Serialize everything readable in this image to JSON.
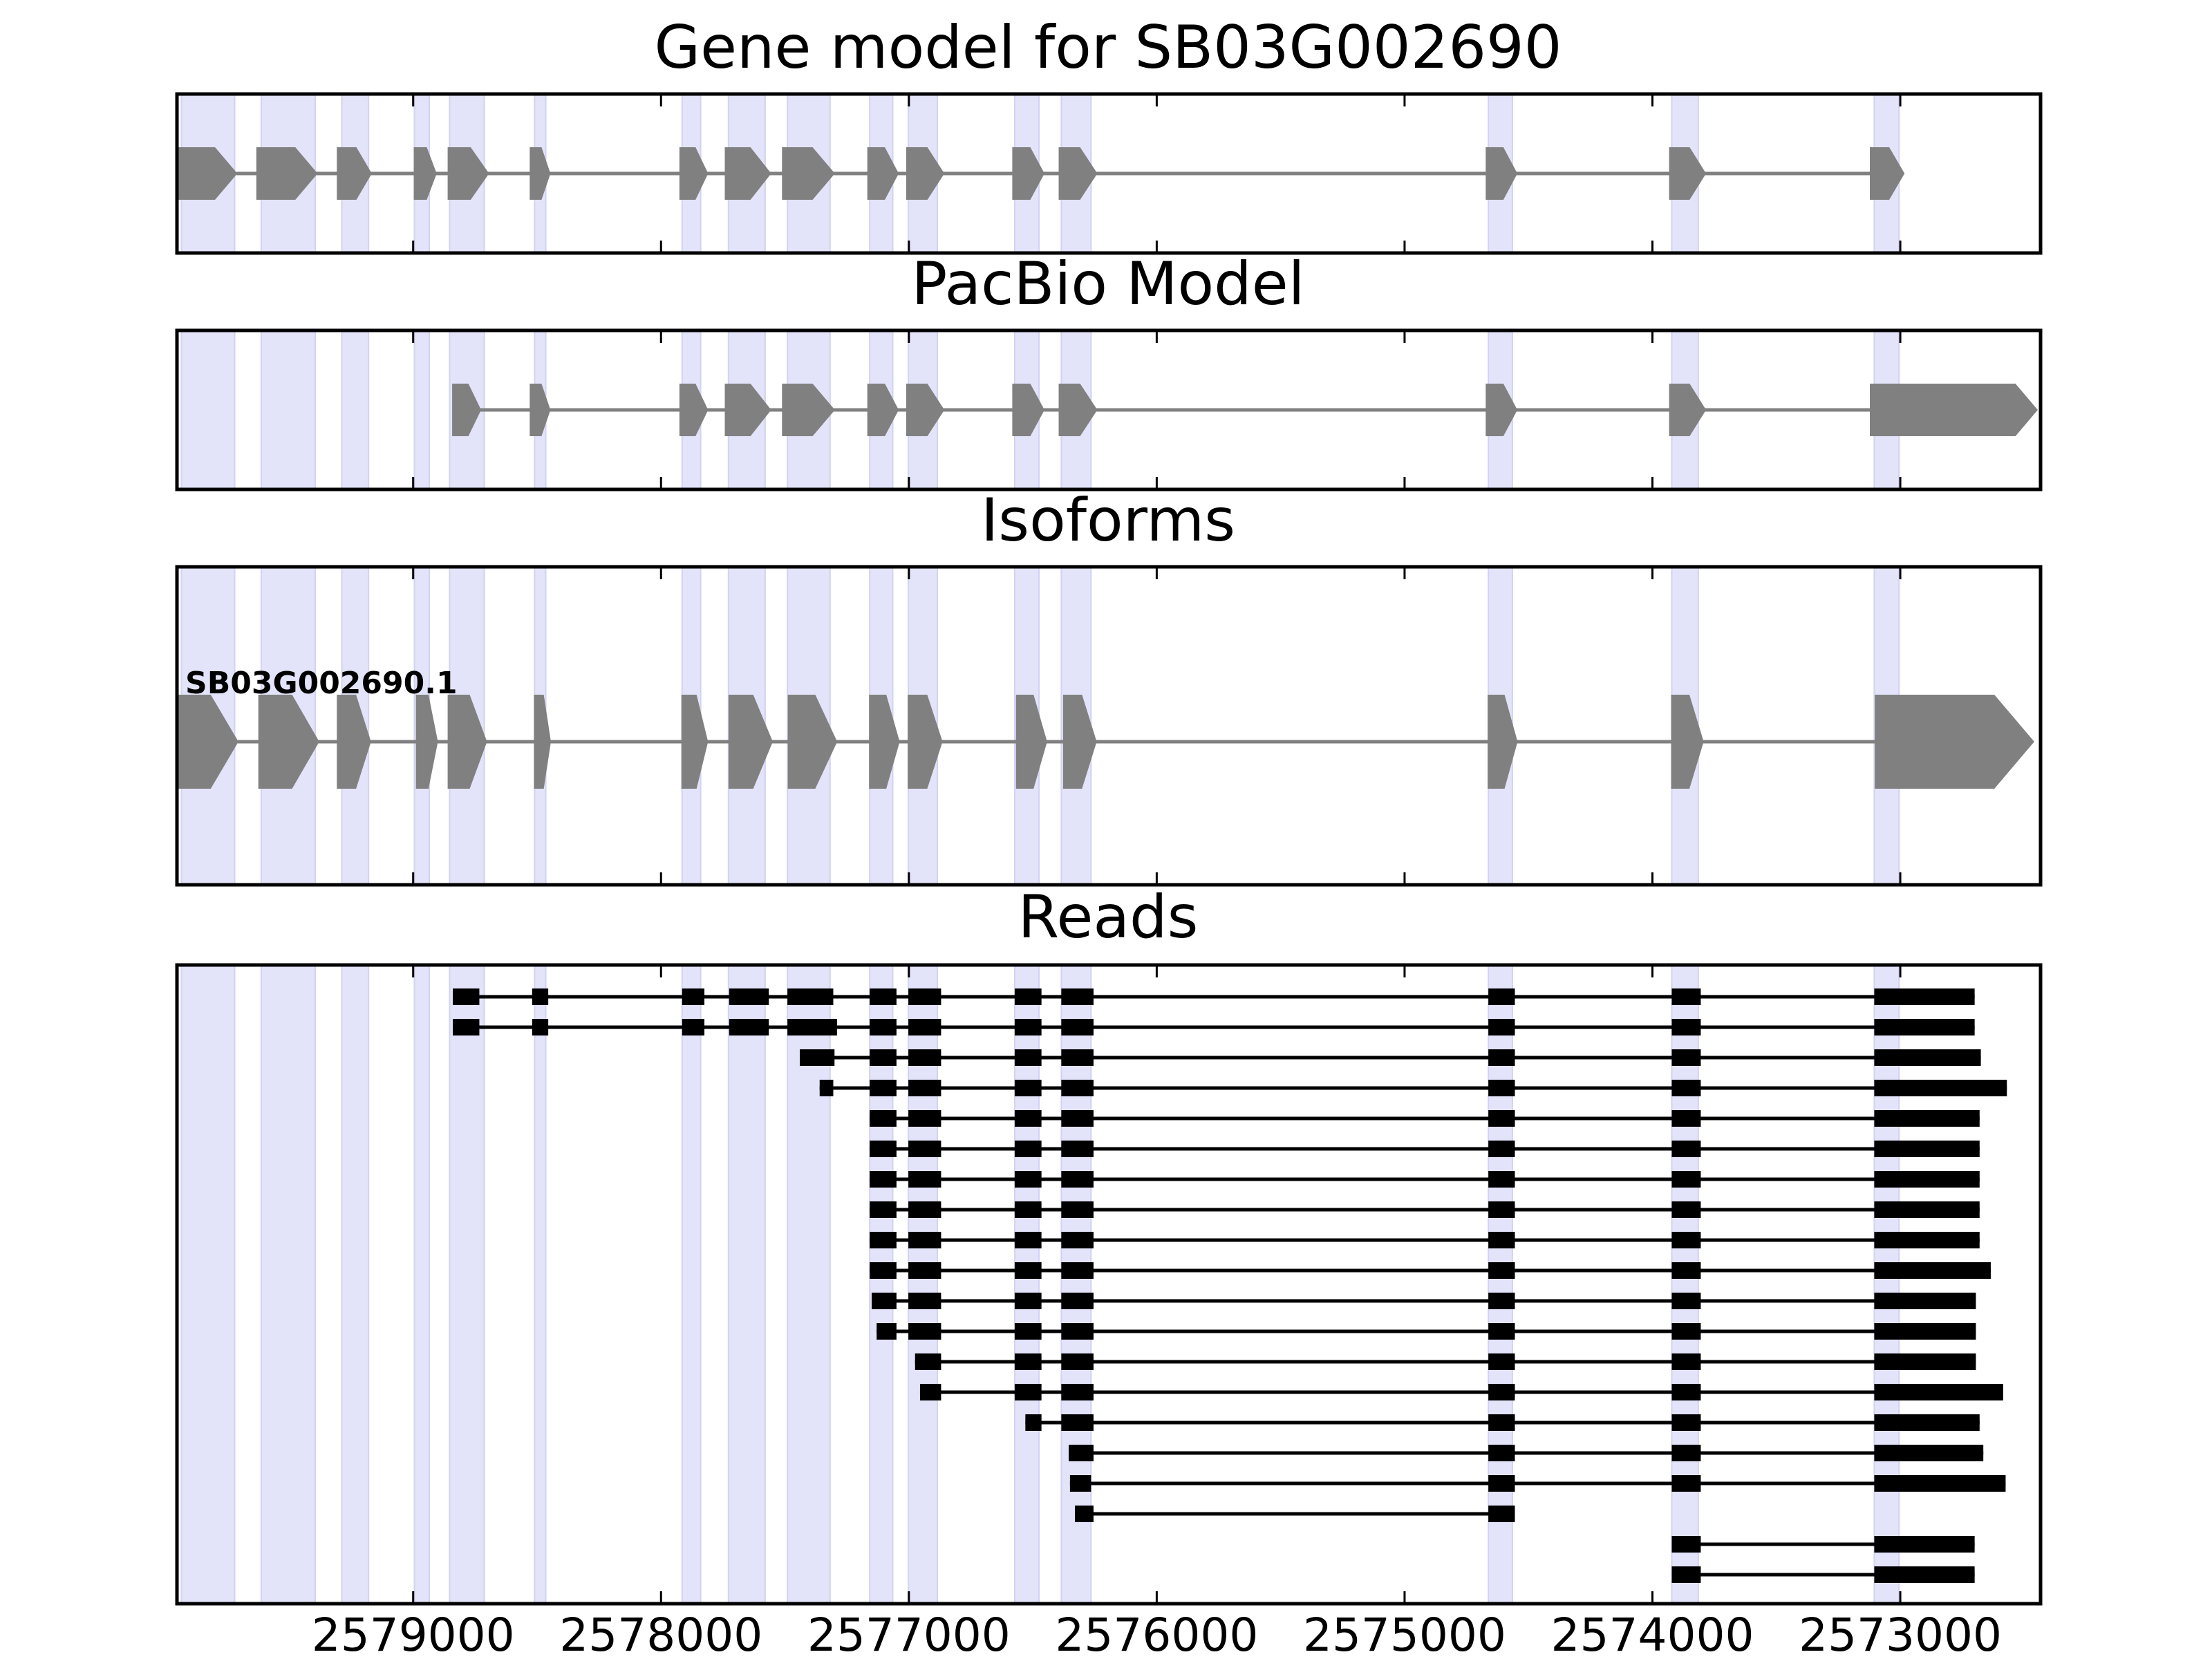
{
  "chart_data": {
    "type": "gene-model-tracks",
    "x_axis": {
      "reversed": true,
      "xlim": [
        2579953,
        2572434
      ],
      "ticks": [
        2579000,
        2578000,
        2577000,
        2576000,
        2575000,
        2574000,
        2573000
      ],
      "tick_labels": [
        "2579000",
        "2578000",
        "2577000",
        "2576000",
        "2575000",
        "2574000",
        "2573000"
      ]
    },
    "shaded_exons": [
      [
        2579935,
        2579720
      ],
      [
        2579613,
        2579395
      ],
      [
        2579288,
        2579180
      ],
      [
        2578995,
        2578935
      ],
      [
        2578853,
        2578713
      ],
      [
        2578510,
        2578465
      ],
      [
        2577915,
        2577840
      ],
      [
        2577728,
        2577580
      ],
      [
        2577490,
        2577318
      ],
      [
        2577158,
        2577065
      ],
      [
        2577002,
        2576885
      ],
      [
        2576573,
        2576475
      ],
      [
        2576385,
        2576265
      ],
      [
        2574662,
        2574565
      ],
      [
        2573922,
        2573815
      ],
      [
        2573105,
        2573005
      ]
    ],
    "panels": [
      {
        "title": "Gene model for SB03G002690",
        "style": "gene",
        "exons": [
          [
            2579953,
            2579713
          ],
          [
            2579630,
            2579389
          ],
          [
            2579305,
            2579170
          ],
          [
            2578995,
            2578908
          ],
          [
            2578858,
            2578697
          ],
          [
            2578527,
            2578449
          ],
          [
            2577923,
            2577813
          ],
          [
            2577740,
            2577559
          ],
          [
            2577509,
            2577302
          ],
          [
            2577165,
            2577044
          ],
          [
            2577008,
            2576860
          ],
          [
            2576580,
            2576456
          ],
          [
            2576393,
            2576243
          ],
          [
            2574670,
            2574548
          ],
          [
            2573930,
            2573787
          ],
          [
            2573120,
            2572986
          ]
        ]
      },
      {
        "title": "PacBio Model",
        "style": "gene",
        "exons": [
          [
            2578840,
            2578729
          ],
          [
            2578527,
            2578449
          ],
          [
            2577923,
            2577813
          ],
          [
            2577740,
            2577559
          ],
          [
            2577509,
            2577302
          ],
          [
            2577165,
            2577044
          ],
          [
            2577008,
            2576860
          ],
          [
            2576580,
            2576456
          ],
          [
            2576393,
            2576243
          ],
          [
            2574670,
            2574548
          ],
          [
            2573930,
            2573787
          ],
          [
            2573120,
            2572449
          ]
        ]
      },
      {
        "title": "Isoforms",
        "style": "isoform",
        "isoform_label": "SB03G002690.1",
        "exons": [
          [
            2579953,
            2579708
          ],
          [
            2579622,
            2579382
          ],
          [
            2579305,
            2579173
          ],
          [
            2578986,
            2578903
          ],
          [
            2578858,
            2578705
          ],
          [
            2578510,
            2578447
          ],
          [
            2577915,
            2577813
          ],
          [
            2577725,
            2577552
          ],
          [
            2577486,
            2577292
          ],
          [
            2577158,
            2577040
          ],
          [
            2577002,
            2576867
          ],
          [
            2576565,
            2576445
          ],
          [
            2576375,
            2576245
          ],
          [
            2574662,
            2574547
          ],
          [
            2573922,
            2573796
          ],
          [
            2573100,
            2572463
          ]
        ]
      },
      {
        "title": "Reads",
        "style": "reads",
        "reads": [
          [
            [
              2578840,
              2578733
            ],
            [
              2578520,
              2578455
            ],
            [
              2577915,
              2577825
            ],
            [
              2577725,
              2577565
            ],
            [
              2577490,
              2577305
            ],
            [
              2577158,
              2577050
            ],
            [
              2577002,
              2576870
            ],
            [
              2576573,
              2576465
            ],
            [
              2576385,
              2576255
            ],
            [
              2574662,
              2574555
            ],
            [
              2573922,
              2573805
            ],
            [
              2573105,
              2572700
            ]
          ],
          [
            [
              2578840,
              2578733
            ],
            [
              2578520,
              2578455
            ],
            [
              2577915,
              2577825
            ],
            [
              2577725,
              2577565
            ],
            [
              2577490,
              2577290
            ],
            [
              2577158,
              2577050
            ],
            [
              2577002,
              2576870
            ],
            [
              2576573,
              2576465
            ],
            [
              2576385,
              2576255
            ],
            [
              2574662,
              2574555
            ],
            [
              2573922,
              2573805
            ],
            [
              2573105,
              2572700
            ]
          ],
          [
            [
              2577440,
              2577300
            ],
            [
              2577158,
              2577050
            ],
            [
              2577002,
              2576870
            ],
            [
              2576573,
              2576465
            ],
            [
              2576385,
              2576255
            ],
            [
              2574662,
              2574555
            ],
            [
              2573922,
              2573805
            ],
            [
              2573105,
              2572675
            ]
          ],
          [
            [
              2577360,
              2577305
            ],
            [
              2577158,
              2577050
            ],
            [
              2577002,
              2576870
            ],
            [
              2576573,
              2576465
            ],
            [
              2576385,
              2576255
            ],
            [
              2574662,
              2574555
            ],
            [
              2573922,
              2573805
            ],
            [
              2573105,
              2572570
            ]
          ],
          [
            [
              2577158,
              2577050
            ],
            [
              2577002,
              2576870
            ],
            [
              2576573,
              2576465
            ],
            [
              2576385,
              2576255
            ],
            [
              2574662,
              2574555
            ],
            [
              2573922,
              2573805
            ],
            [
              2573105,
              2572680
            ]
          ],
          [
            [
              2577158,
              2577050
            ],
            [
              2577002,
              2576870
            ],
            [
              2576573,
              2576465
            ],
            [
              2576385,
              2576255
            ],
            [
              2574662,
              2574555
            ],
            [
              2573922,
              2573805
            ],
            [
              2573105,
              2572680
            ]
          ],
          [
            [
              2577158,
              2577050
            ],
            [
              2577002,
              2576870
            ],
            [
              2576573,
              2576465
            ],
            [
              2576385,
              2576255
            ],
            [
              2574662,
              2574555
            ],
            [
              2573922,
              2573805
            ],
            [
              2573105,
              2572680
            ]
          ],
          [
            [
              2577158,
              2577050
            ],
            [
              2577002,
              2576870
            ],
            [
              2576573,
              2576465
            ],
            [
              2576385,
              2576255
            ],
            [
              2574662,
              2574555
            ],
            [
              2573922,
              2573805
            ],
            [
              2573105,
              2572680
            ]
          ],
          [
            [
              2577158,
              2577050
            ],
            [
              2577002,
              2576870
            ],
            [
              2576573,
              2576465
            ],
            [
              2576385,
              2576255
            ],
            [
              2574662,
              2574555
            ],
            [
              2573922,
              2573805
            ],
            [
              2573105,
              2572680
            ]
          ],
          [
            [
              2577158,
              2577050
            ],
            [
              2577002,
              2576870
            ],
            [
              2576573,
              2576465
            ],
            [
              2576385,
              2576255
            ],
            [
              2574662,
              2574555
            ],
            [
              2573922,
              2573805
            ],
            [
              2573105,
              2572635
            ]
          ],
          [
            [
              2577150,
              2577050
            ],
            [
              2577002,
              2576870
            ],
            [
              2576573,
              2576465
            ],
            [
              2576385,
              2576255
            ],
            [
              2574662,
              2574555
            ],
            [
              2573922,
              2573805
            ],
            [
              2573105,
              2572695
            ]
          ],
          [
            [
              2577130,
              2577050
            ],
            [
              2577002,
              2576870
            ],
            [
              2576573,
              2576465
            ],
            [
              2576385,
              2576255
            ],
            [
              2574662,
              2574555
            ],
            [
              2573922,
              2573805
            ],
            [
              2573105,
              2572695
            ]
          ],
          [
            [
              2576975,
              2576870
            ],
            [
              2576573,
              2576465
            ],
            [
              2576385,
              2576255
            ],
            [
              2574662,
              2574555
            ],
            [
              2573922,
              2573805
            ],
            [
              2573105,
              2572695
            ]
          ],
          [
            [
              2576955,
              2576870
            ],
            [
              2576573,
              2576465
            ],
            [
              2576385,
              2576255
            ],
            [
              2574662,
              2574555
            ],
            [
              2573922,
              2573805
            ],
            [
              2573105,
              2572585
            ]
          ],
          [
            [
              2576530,
              2576465
            ],
            [
              2576385,
              2576255
            ],
            [
              2574662,
              2574555
            ],
            [
              2573922,
              2573805
            ],
            [
              2573105,
              2572680
            ]
          ],
          [
            [
              2576355,
              2576255
            ],
            [
              2574662,
              2574555
            ],
            [
              2573922,
              2573805
            ],
            [
              2573105,
              2572665
            ]
          ],
          [
            [
              2576350,
              2576265
            ],
            [
              2574662,
              2574555
            ],
            [
              2573922,
              2573805
            ],
            [
              2573105,
              2572575
            ]
          ],
          [
            [
              2576330,
              2576255
            ],
            [
              2574662,
              2574555
            ]
          ],
          [
            [
              2573922,
              2573805
            ],
            [
              2573105,
              2572700
            ]
          ],
          [
            [
              2573922,
              2573805
            ],
            [
              2573105,
              2572700
            ]
          ]
        ]
      }
    ]
  }
}
